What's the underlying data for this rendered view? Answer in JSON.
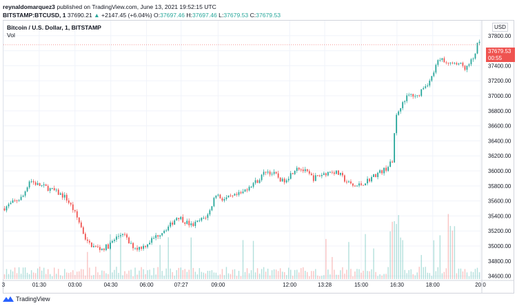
{
  "header": {
    "author": "reynaldomarquez3",
    "published_text": "published on TradingView.com, June 13, 2021 19:52:15 UTC"
  },
  "symbol_bar": {
    "symbol": "BITSTAMP:BTCUSD, 1",
    "last": "37690.21",
    "change": "+2147.45 (+6.04%)",
    "o_label": "O:",
    "o_value": "37697.46",
    "h_label": "H:",
    "h_value": "37697.46",
    "l_label": "L:",
    "l_value": "37679.53",
    "c_label": "C:",
    "c_value": "37679.53"
  },
  "legend": {
    "title": "Bitcoin / U.S. Dollar, 1, BITSTAMP",
    "volume": "Vol"
  },
  "currency": "USD",
  "price_badge": {
    "price": "37679.53",
    "countdown": "00:55"
  },
  "footer": {
    "brand": "TradingView"
  },
  "colors": {
    "up": "#26a69a",
    "down": "#ef5350",
    "grid": "#f0f3fa",
    "axis_text": "#131722"
  },
  "chart_data": {
    "type": "candlestick",
    "y_ticks": [
      37800,
      37600,
      37400,
      37200,
      37000,
      36800,
      36600,
      36400,
      36200,
      36000,
      35800,
      35600,
      35400,
      35200,
      35000,
      34800,
      34600
    ],
    "y_tick_labels": [
      "37800.00",
      "37600.00",
      "37400.00",
      "37200.00",
      "37000.00",
      "36800.00",
      "36600.00",
      "36400.00",
      "36200.00",
      "36000.00",
      "35800.00",
      "35600.00",
      "35400.00",
      "35200.00",
      "35000.00",
      "34800.00",
      "34600.00"
    ],
    "y_range": [
      34560,
      38000
    ],
    "x_ticks": [
      "3",
      "01:30",
      "03:00",
      "04:30",
      "06:00",
      "07:27",
      "09:00",
      "12:00",
      "13:28",
      "15:00",
      "16:30",
      "18:00",
      "20:0"
    ],
    "x_tick_hours": [
      0,
      1.5,
      3,
      4.5,
      6,
      7.45,
      9,
      12,
      13.47,
      15,
      16.5,
      18,
      20
    ],
    "x_range_hours": [
      0,
      20
    ],
    "last_price": 37679.53,
    "price_path": [
      [
        0.0,
        35500
      ],
      [
        0.4,
        35580
      ],
      [
        0.8,
        35650
      ],
      [
        1.1,
        35880
      ],
      [
        1.4,
        35820
      ],
      [
        1.8,
        35780
      ],
      [
        2.2,
        35720
      ],
      [
        2.6,
        35650
      ],
      [
        2.9,
        35500
      ],
      [
        3.2,
        35300
      ],
      [
        3.5,
        35050
      ],
      [
        3.8,
        34990
      ],
      [
        4.1,
        34960
      ],
      [
        4.4,
        35000
      ],
      [
        4.7,
        35100
      ],
      [
        5.0,
        35180
      ],
      [
        5.3,
        35020
      ],
      [
        5.6,
        34970
      ],
      [
        5.9,
        35000
      ],
      [
        6.2,
        35080
      ],
      [
        6.6,
        35180
      ],
      [
        7.0,
        35280
      ],
      [
        7.3,
        35400
      ],
      [
        7.6,
        35330
      ],
      [
        7.9,
        35270
      ],
      [
        8.2,
        35330
      ],
      [
        8.6,
        35420
      ],
      [
        8.9,
        35700
      ],
      [
        9.2,
        35620
      ],
      [
        9.6,
        35650
      ],
      [
        10.0,
        35700
      ],
      [
        10.3,
        35800
      ],
      [
        10.7,
        35880
      ],
      [
        11.0,
        36000
      ],
      [
        11.4,
        35950
      ],
      [
        11.7,
        35860
      ],
      [
        12.0,
        35940
      ],
      [
        12.3,
        36060
      ],
      [
        12.7,
        35980
      ],
      [
        13.0,
        35900
      ],
      [
        13.4,
        35960
      ],
      [
        13.8,
        36000
      ],
      [
        14.1,
        35950
      ],
      [
        14.4,
        35850
      ],
      [
        14.7,
        35790
      ],
      [
        15.0,
        35820
      ],
      [
        15.3,
        35880
      ],
      [
        15.6,
        35950
      ],
      [
        16.0,
        36020
      ],
      [
        16.3,
        36120
      ],
      [
        16.4,
        36550
      ],
      [
        16.5,
        36780
      ],
      [
        16.8,
        36950
      ],
      [
        17.1,
        37020
      ],
      [
        17.3,
        36960
      ],
      [
        17.6,
        37120
      ],
      [
        17.9,
        37200
      ],
      [
        18.2,
        37450
      ],
      [
        18.5,
        37480
      ],
      [
        18.8,
        37400
      ],
      [
        19.1,
        37430
      ],
      [
        19.4,
        37360
      ],
      [
        19.7,
        37500
      ],
      [
        19.9,
        37700
      ],
      [
        20.0,
        37680
      ]
    ]
  }
}
